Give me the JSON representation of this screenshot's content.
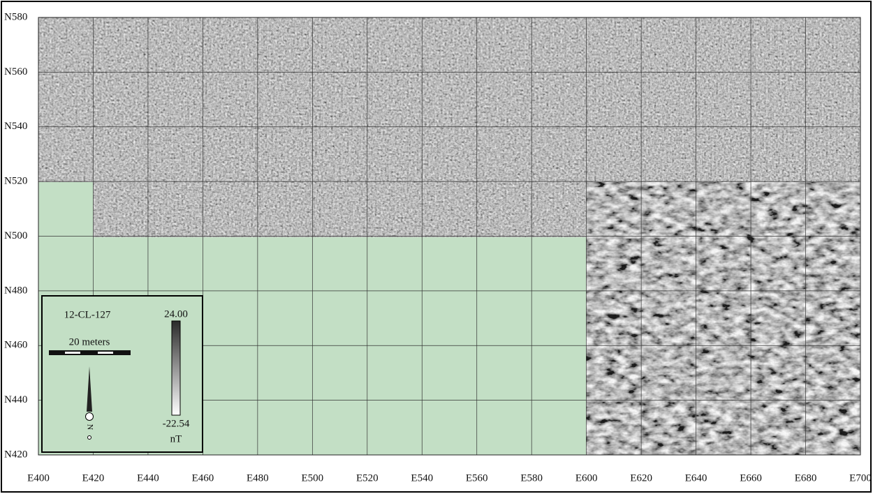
{
  "map": {
    "northing_labels": [
      "N580",
      "N560",
      "N540",
      "N520",
      "N500",
      "N480",
      "N460",
      "N440",
      "N420"
    ],
    "easting_labels": [
      "E400",
      "E420",
      "E440",
      "E460",
      "E480",
      "E500",
      "E520",
      "E540",
      "E560",
      "E580",
      "E600",
      "E620",
      "E640",
      "E660",
      "E680",
      "E700"
    ],
    "legend": {
      "site": "12-CL-127",
      "scale": "20 meters",
      "max": "24.00",
      "min": "-22.54",
      "unit": "nT",
      "north": "N"
    }
  }
}
